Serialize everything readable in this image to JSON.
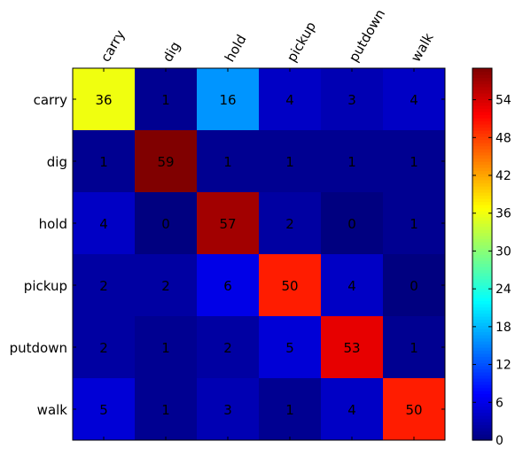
{
  "chart_data": {
    "type": "heatmap",
    "title": "",
    "xlabel": "",
    "ylabel": "",
    "x_categories": [
      "carry",
      "dig",
      "hold",
      "pickup",
      "putdown",
      "walk"
    ],
    "y_categories": [
      "carry",
      "dig",
      "hold",
      "pickup",
      "putdown",
      "walk"
    ],
    "values": [
      [
        36,
        1,
        16,
        4,
        3,
        4
      ],
      [
        1,
        59,
        1,
        1,
        1,
        1
      ],
      [
        4,
        0,
        57,
        2,
        0,
        1
      ],
      [
        2,
        2,
        6,
        50,
        4,
        0
      ],
      [
        2,
        1,
        2,
        5,
        53,
        1
      ],
      [
        5,
        1,
        3,
        1,
        4,
        50
      ]
    ],
    "colormap": "jet",
    "color_range": [
      0,
      59
    ],
    "colorbar": {
      "ticks": [
        0,
        6,
        12,
        18,
        24,
        30,
        36,
        42,
        48,
        54
      ]
    },
    "grid": false
  }
}
